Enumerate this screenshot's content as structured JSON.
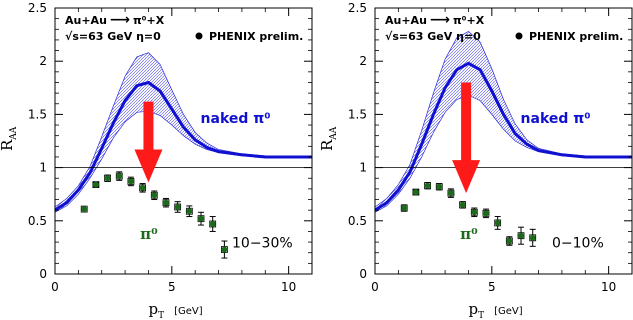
{
  "chart_data": [
    {
      "type": "scatter",
      "system": "Au+Au",
      "reaction_arrow": "⟶",
      "reaction_final": "π⁰+X",
      "energy_text": "√s=63 GeV η=0",
      "legend_label": "PHENIX prelim.",
      "legend_placement": "top-right",
      "curve_label": "naked π⁰",
      "data_label": "π⁰",
      "centrality": "10−30%",
      "ylabel_main": "R",
      "ylabel_sub": "AA",
      "xlabel_main": "p",
      "xlabel_sub": "T",
      "xunit": "[GeV]",
      "xlim": [
        0,
        11
      ],
      "ylim": [
        0,
        2.5
      ],
      "xticks": [
        0,
        5,
        10
      ],
      "yticks": [
        0,
        0.5,
        1,
        1.5,
        2,
        2.5
      ],
      "ytick_labels": [
        "0",
        "0.5",
        "1",
        "1.5",
        "2",
        "2.5"
      ],
      "reference_line": 1,
      "curve_x": [
        0,
        0.5,
        1,
        1.5,
        2,
        2.5,
        3,
        3.5,
        4,
        4.5,
        5,
        5.5,
        6,
        6.5,
        7,
        8,
        9,
        10,
        11
      ],
      "curve_center": [
        0.6,
        0.67,
        0.79,
        0.95,
        1.18,
        1.42,
        1.63,
        1.77,
        1.8,
        1.72,
        1.55,
        1.38,
        1.26,
        1.19,
        1.15,
        1.12,
        1.1,
        1.1,
        1.1
      ],
      "curve_low": [
        0.58,
        0.64,
        0.75,
        0.9,
        1.08,
        1.28,
        1.43,
        1.52,
        1.53,
        1.49,
        1.4,
        1.3,
        1.22,
        1.17,
        1.14,
        1.11,
        1.1,
        1.09,
        1.09
      ],
      "curve_high": [
        0.63,
        0.71,
        0.83,
        1.01,
        1.29,
        1.58,
        1.86,
        2.04,
        2.08,
        1.97,
        1.73,
        1.5,
        1.33,
        1.23,
        1.17,
        1.13,
        1.11,
        1.1,
        1.1
      ],
      "points": [
        {
          "x": 1.25,
          "y": 0.61,
          "err": 0.01
        },
        {
          "x": 1.75,
          "y": 0.84,
          "err": 0.02
        },
        {
          "x": 2.25,
          "y": 0.9,
          "err": 0.03
        },
        {
          "x": 2.75,
          "y": 0.92,
          "err": 0.04
        },
        {
          "x": 3.25,
          "y": 0.87,
          "err": 0.04
        },
        {
          "x": 3.75,
          "y": 0.81,
          "err": 0.04
        },
        {
          "x": 4.25,
          "y": 0.74,
          "err": 0.04
        },
        {
          "x": 4.75,
          "y": 0.67,
          "err": 0.04
        },
        {
          "x": 5.25,
          "y": 0.63,
          "err": 0.05
        },
        {
          "x": 5.75,
          "y": 0.59,
          "err": 0.05
        },
        {
          "x": 6.25,
          "y": 0.52,
          "err": 0.06
        },
        {
          "x": 6.75,
          "y": 0.47,
          "err": 0.07
        },
        {
          "x": 7.25,
          "y": 0.23,
          "err": 0.08
        }
      ],
      "arrow": {
        "x": 4,
        "y_from": 1.62,
        "y_to": 0.86
      },
      "colors": {
        "curve": "#1010d0",
        "band": "#2b2bd8",
        "points": "#1b6b1b",
        "arrow": "#ff1a1a"
      }
    },
    {
      "type": "scatter",
      "system": "Au+Au",
      "reaction_arrow": "⟶",
      "reaction_final": "π⁰+X",
      "energy_text": "√s=63 GeV η=0",
      "legend_label": "PHENIX prelim.",
      "legend_placement": "top-right",
      "curve_label": "naked π⁰",
      "data_label": "π⁰",
      "centrality": "0−10%",
      "ylabel_main": "R",
      "ylabel_sub": "AA",
      "xlabel_main": "p",
      "xlabel_sub": "T",
      "xunit": "[GeV]",
      "xlim": [
        0,
        11
      ],
      "ylim": [
        0,
        2.5
      ],
      "xticks": [
        0,
        5,
        10
      ],
      "yticks": [
        0,
        0.5,
        1,
        1.5,
        2,
        2.5
      ],
      "ytick_labels": [
        "0",
        "0.5",
        "1",
        "1.5",
        "2",
        "2.5"
      ],
      "reference_line": 1,
      "curve_x": [
        0,
        0.5,
        1,
        1.5,
        2,
        2.5,
        3,
        3.5,
        4,
        4.5,
        5,
        5.5,
        6,
        6.5,
        7,
        8,
        9,
        10,
        11
      ],
      "curve_center": [
        0.6,
        0.67,
        0.79,
        0.96,
        1.22,
        1.5,
        1.75,
        1.92,
        1.98,
        1.92,
        1.72,
        1.5,
        1.32,
        1.22,
        1.16,
        1.12,
        1.1,
        1.1,
        1.1
      ],
      "curve_low": [
        0.58,
        0.64,
        0.75,
        0.9,
        1.1,
        1.33,
        1.52,
        1.64,
        1.68,
        1.63,
        1.5,
        1.36,
        1.25,
        1.19,
        1.15,
        1.11,
        1.1,
        1.09,
        1.09
      ],
      "curve_high": [
        0.63,
        0.71,
        0.84,
        1.03,
        1.35,
        1.7,
        2.02,
        2.22,
        2.28,
        2.18,
        1.93,
        1.64,
        1.41,
        1.26,
        1.18,
        1.13,
        1.11,
        1.1,
        1.1
      ],
      "points": [
        {
          "x": 1.25,
          "y": 0.62,
          "err": 0.03
        },
        {
          "x": 1.75,
          "y": 0.77,
          "err": 0.02
        },
        {
          "x": 2.25,
          "y": 0.83,
          "err": 0.03
        },
        {
          "x": 2.75,
          "y": 0.82,
          "err": 0.03
        },
        {
          "x": 3.25,
          "y": 0.76,
          "err": 0.04
        },
        {
          "x": 3.75,
          "y": 0.65,
          "err": 0.03
        },
        {
          "x": 4.25,
          "y": 0.58,
          "err": 0.04
        },
        {
          "x": 4.75,
          "y": 0.57,
          "err": 0.04
        },
        {
          "x": 5.25,
          "y": 0.48,
          "err": 0.06
        },
        {
          "x": 5.75,
          "y": 0.31,
          "err": 0.04
        },
        {
          "x": 6.25,
          "y": 0.36,
          "err": 0.08
        },
        {
          "x": 6.75,
          "y": 0.34,
          "err": 0.08
        }
      ],
      "arrow": {
        "x": 3.9,
        "y_from": 1.8,
        "y_to": 0.76
      },
      "colors": {
        "curve": "#1010d0",
        "band": "#2b2bd8",
        "points": "#1b6b1b",
        "arrow": "#ff1a1a"
      }
    }
  ]
}
